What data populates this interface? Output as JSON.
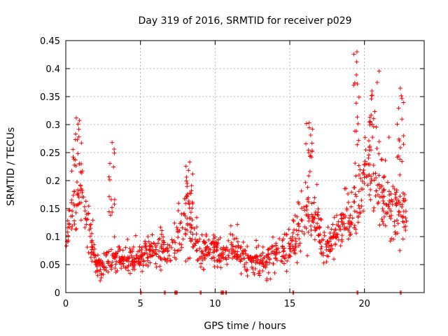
{
  "chart_data": {
    "type": "scatter",
    "title": "Day 319 of 2016, SRMTID for receiver p029",
    "xlabel": "GPS time / hours",
    "ylabel": "SRMTID / TECUs",
    "xlim": [
      0,
      24
    ],
    "ylim": [
      0,
      0.45
    ],
    "x_ticks": [
      0,
      5,
      10,
      15,
      20
    ],
    "x_tick_labels": [
      "0",
      "5",
      "10",
      "15",
      "20"
    ],
    "y_ticks": [
      0,
      0.05,
      0.1,
      0.15,
      0.2,
      0.25,
      0.3,
      0.35,
      0.4,
      0.45
    ],
    "y_tick_labels": [
      "0",
      "0.05",
      "0.1",
      "0.15",
      "0.2",
      "0.25",
      "0.3",
      "0.35",
      "0.4",
      "0.45"
    ],
    "grid": true,
    "marker": "plus",
    "color": "#ff0000",
    "series": [
      {
        "name": "SRMTID",
        "envelope_x": [
          0,
          0.5,
          1.0,
          1.5,
          2.0,
          2.5,
          3.0,
          3.5,
          4.0,
          4.5,
          5.0,
          5.5,
          6.0,
          6.5,
          7.0,
          7.5,
          8.0,
          8.5,
          9.0,
          9.5,
          10.0,
          10.5,
          11.0,
          11.5,
          12.0,
          12.5,
          13.0,
          13.5,
          14.0,
          14.5,
          15.0,
          15.5,
          16.0,
          16.5,
          17.0,
          17.5,
          18.0,
          18.5,
          19.0,
          19.5,
          20.0,
          20.5,
          21.0,
          21.5,
          22.0,
          22.5,
          22.9
        ],
        "envelope_center": [
          0.085,
          0.15,
          0.19,
          0.11,
          0.05,
          0.045,
          0.06,
          0.06,
          0.06,
          0.055,
          0.065,
          0.07,
          0.07,
          0.075,
          0.07,
          0.1,
          0.12,
          0.11,
          0.07,
          0.08,
          0.08,
          0.07,
          0.07,
          0.07,
          0.06,
          0.06,
          0.055,
          0.06,
          0.07,
          0.07,
          0.075,
          0.1,
          0.14,
          0.13,
          0.11,
          0.08,
          0.1,
          0.12,
          0.13,
          0.16,
          0.2,
          0.22,
          0.2,
          0.16,
          0.14,
          0.15,
          0.14
        ],
        "envelope_spread": [
          0.02,
          0.06,
          0.07,
          0.05,
          0.02,
          0.02,
          0.03,
          0.03,
          0.03,
          0.025,
          0.03,
          0.03,
          0.03,
          0.03,
          0.03,
          0.05,
          0.06,
          0.05,
          0.03,
          0.03,
          0.03,
          0.03,
          0.03,
          0.03,
          0.025,
          0.025,
          0.025,
          0.03,
          0.03,
          0.03,
          0.035,
          0.045,
          0.06,
          0.05,
          0.04,
          0.035,
          0.04,
          0.05,
          0.05,
          0.07,
          0.09,
          0.09,
          0.08,
          0.06,
          0.06,
          0.07,
          0.05
        ],
        "peaks": [
          {
            "x": 0.7,
            "y": 0.312
          },
          {
            "x": 3.1,
            "y": 0.268
          },
          {
            "x": 8.3,
            "y": 0.233
          },
          {
            "x": 16.3,
            "y": 0.303
          },
          {
            "x": 19.5,
            "y": 0.43
          },
          {
            "x": 20.5,
            "y": 0.36
          },
          {
            "x": 22.4,
            "y": 0.365
          }
        ],
        "n_points": 1150,
        "zero_points_x": [
          5.0,
          6.6,
          7.3,
          7.4,
          9.0,
          10.4,
          10.5,
          10.7,
          15.2,
          19.5,
          22.4
        ]
      }
    ]
  }
}
